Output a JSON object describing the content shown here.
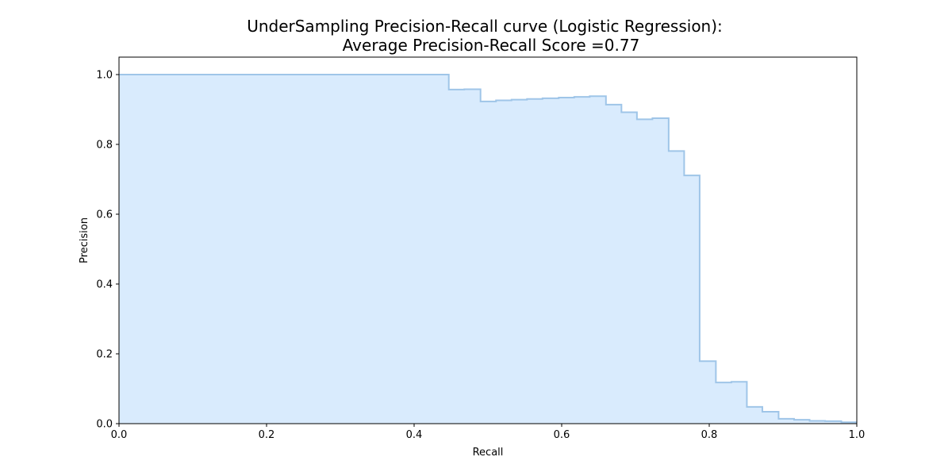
{
  "chart_data": {
    "type": "area",
    "title_lines": [
      "UnderSampling Precision-Recall curve (Logistic Regression):",
      "Average Precision-Recall Score =0.77"
    ],
    "xlabel": "Recall",
    "ylabel": "Precision",
    "xlim": [
      0.0,
      1.0
    ],
    "ylim": [
      0.0,
      1.05
    ],
    "x_ticks": [
      "0.0",
      "0.2",
      "0.4",
      "0.6",
      "0.8",
      "1.0"
    ],
    "y_ticks": [
      "0.0",
      "0.2",
      "0.4",
      "0.6",
      "0.8",
      "1.0"
    ],
    "grid": false,
    "step": "post",
    "colors": {
      "line": "#9fc5e8",
      "fill": "#d9ebfd",
      "axes": "#000000"
    },
    "series": [
      {
        "recall": [
          0.0,
          0.447,
          0.468,
          0.49,
          0.511,
          0.532,
          0.553,
          0.574,
          0.596,
          0.617,
          0.638,
          0.66,
          0.681,
          0.702,
          0.723,
          0.745,
          0.766,
          0.787,
          0.809,
          0.83,
          0.851,
          0.872,
          0.894,
          0.915,
          0.936,
          0.957,
          0.979,
          1.0
        ],
        "precision": [
          1.0,
          0.957,
          0.958,
          0.923,
          0.926,
          0.928,
          0.93,
          0.932,
          0.934,
          0.936,
          0.938,
          0.914,
          0.892,
          0.872,
          0.875,
          0.781,
          0.711,
          0.179,
          0.118,
          0.12,
          0.048,
          0.034,
          0.014,
          0.011,
          0.008,
          0.007,
          0.004,
          0.004
        ]
      }
    ]
  }
}
